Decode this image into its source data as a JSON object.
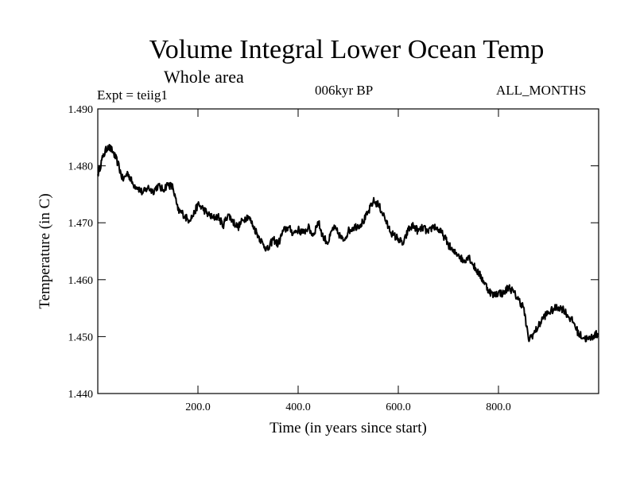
{
  "chart_data": {
    "type": "line",
    "title": "Volume Integral Lower Ocean Temp",
    "subtitle": "Whole area",
    "annotations": {
      "experiment": "Expt = teiig1",
      "period": "006kyr BP",
      "months": "ALL_MONTHS"
    },
    "xlabel": "Time (in years since start)",
    "ylabel": "Temperature (in C)",
    "xlim": [
      0,
      1000
    ],
    "ylim": [
      1.44,
      1.49
    ],
    "x_ticks": [
      200,
      400,
      600,
      800
    ],
    "x_tick_labels": [
      "200.0",
      "400.0",
      "600.0",
      "800.0"
    ],
    "y_ticks": [
      1.44,
      1.45,
      1.46,
      1.47,
      1.48,
      1.49
    ],
    "y_tick_labels": [
      "1.440",
      "1.450",
      "1.460",
      "1.470",
      "1.480",
      "1.490"
    ],
    "grid": false,
    "line_color": "#000000",
    "series": [
      {
        "x": [
          0,
          10,
          20,
          30,
          40,
          50,
          60,
          70,
          80,
          90,
          100,
          110,
          120,
          130,
          140,
          150,
          160,
          170,
          180,
          190,
          200,
          210,
          220,
          230,
          240,
          250,
          260,
          270,
          280,
          290,
          300,
          310,
          320,
          330,
          340,
          350,
          360,
          370,
          380,
          390,
          400,
          410,
          420,
          430,
          440,
          450,
          460,
          470,
          480,
          490,
          500,
          510,
          520,
          530,
          540,
          550,
          560,
          570,
          580,
          590,
          600,
          610,
          620,
          630,
          640,
          650,
          660,
          670,
          680,
          690,
          700,
          710,
          720,
          730,
          740,
          750,
          760,
          770,
          780,
          790,
          800,
          810,
          820,
          830,
          840,
          850,
          860,
          870,
          880,
          890,
          900,
          910,
          920,
          930,
          940,
          950,
          960,
          970,
          980,
          990,
          1000
        ],
        "values": [
          1.4785,
          1.4815,
          1.4835,
          1.4825,
          1.4805,
          1.4775,
          1.4788,
          1.4768,
          1.4762,
          1.4752,
          1.4762,
          1.4755,
          1.4765,
          1.4758,
          1.4768,
          1.4762,
          1.4722,
          1.4716,
          1.4705,
          1.4712,
          1.4732,
          1.4725,
          1.4715,
          1.4708,
          1.4712,
          1.4695,
          1.4715,
          1.4702,
          1.4692,
          1.4705,
          1.4712,
          1.4695,
          1.4678,
          1.4662,
          1.4652,
          1.4672,
          1.4662,
          1.4685,
          1.4692,
          1.4682,
          1.4688,
          1.4682,
          1.4692,
          1.4678,
          1.4702,
          1.4675,
          1.4665,
          1.4692,
          1.4682,
          1.4668,
          1.4685,
          1.4692,
          1.4695,
          1.4702,
          1.4718,
          1.4738,
          1.4732,
          1.4715,
          1.4692,
          1.4678,
          1.4672,
          1.4662,
          1.4688,
          1.4695,
          1.4685,
          1.4692,
          1.4682,
          1.4695,
          1.4688,
          1.4678,
          1.4662,
          1.4648,
          1.4645,
          1.4632,
          1.4642,
          1.4625,
          1.4612,
          1.4598,
          1.4582,
          1.4572,
          1.4578,
          1.4575,
          1.4588,
          1.4578,
          1.4565,
          1.4552,
          1.4495,
          1.4505,
          1.4518,
          1.4535,
          1.4542,
          1.4548,
          1.4552,
          1.4548,
          1.4535,
          1.4525,
          1.4505,
          1.4498,
          1.4495,
          1.4502,
          1.4505
        ]
      }
    ]
  }
}
